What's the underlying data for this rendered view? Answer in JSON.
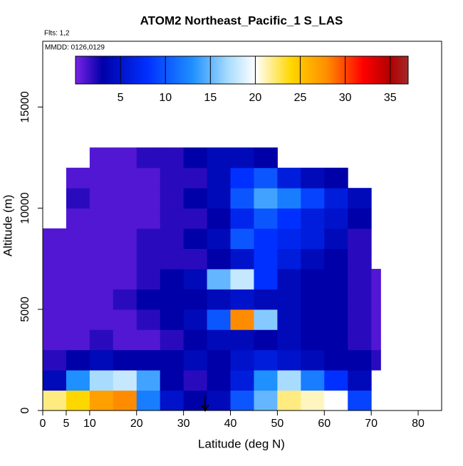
{
  "chart_data": {
    "type": "heatmap",
    "title": "ATOM2 Northeast_Pacific_1 S_LAS",
    "subtitle": "Flts: 1,2",
    "annotation": "MMDD: 0126,0129",
    "x_label": "Latitude (deg N)",
    "y_label": "Altitude (m)",
    "x_edges": [
      0,
      5,
      10,
      15,
      20,
      25,
      30,
      35,
      40,
      45,
      50,
      55,
      60,
      65,
      70,
      72
    ],
    "y_edges": [
      0,
      1000,
      2000,
      3000,
      4000,
      5000,
      6000,
      7000,
      8000,
      9000,
      10000,
      11000,
      12000,
      13000
    ],
    "z": [
      [
        22,
        24,
        27,
        28,
        12,
        5,
        3,
        4,
        10,
        15,
        22,
        21,
        20,
        9,
        null
      ],
      [
        4,
        13,
        17,
        18,
        14,
        3,
        2,
        3,
        6,
        13,
        17,
        12,
        8,
        4,
        null
      ],
      [
        2,
        3,
        4,
        3,
        3,
        3,
        4,
        3,
        5,
        6,
        5,
        4,
        3,
        3,
        2
      ],
      [
        1,
        1,
        2,
        1,
        1,
        2,
        3,
        4,
        4,
        3,
        4,
        3,
        3,
        2,
        1
      ],
      [
        1,
        1,
        1,
        1,
        2,
        3,
        4,
        10,
        28,
        16,
        4,
        3,
        3,
        2,
        1
      ],
      [
        1,
        1,
        1,
        2,
        3,
        3,
        3,
        4,
        5,
        4,
        4,
        3,
        3,
        2,
        1
      ],
      [
        1,
        1,
        1,
        1,
        2,
        3,
        4,
        15,
        18,
        8,
        4,
        3,
        3,
        2,
        1
      ],
      [
        1,
        1,
        1,
        1,
        2,
        2,
        2,
        3,
        5,
        8,
        6,
        4,
        3,
        2,
        null
      ],
      [
        1,
        1,
        1,
        1,
        2,
        2,
        3,
        4,
        10,
        8,
        7,
        6,
        4,
        2,
        null
      ],
      [
        null,
        1,
        1,
        1,
        1,
        2,
        2,
        3,
        7,
        10,
        8,
        6,
        5,
        3,
        null
      ],
      [
        null,
        2,
        1,
        1,
        1,
        2,
        3,
        4,
        10,
        14,
        12,
        9,
        6,
        4,
        null
      ],
      [
        null,
        1,
        1,
        1,
        1,
        2,
        2,
        4,
        8,
        10,
        6,
        4,
        3,
        null,
        null
      ],
      [
        null,
        null,
        1,
        1,
        2,
        2,
        3,
        4,
        4,
        3,
        null,
        null,
        null,
        null,
        null
      ]
    ],
    "xlim": [
      0,
      85
    ],
    "xticks": [
      0,
      5,
      10,
      20,
      30,
      40,
      50,
      60,
      70,
      80
    ],
    "ylim": [
      0,
      18250
    ],
    "yticks": [
      0,
      5000,
      10000,
      15000
    ],
    "clim": [
      0,
      37
    ],
    "cticks": [
      5,
      10,
      15,
      20,
      25,
      30,
      35
    ],
    "colorscale": [
      [
        0,
        "#7a22e8"
      ],
      [
        3,
        "#0000a8"
      ],
      [
        8,
        "#0030ff"
      ],
      [
        13,
        "#1e90ff"
      ],
      [
        17,
        "#a8dcff"
      ],
      [
        20,
        "#ffffff"
      ],
      [
        24,
        "#ffd700"
      ],
      [
        28,
        "#ff8c00"
      ],
      [
        32,
        "#ff0000"
      ],
      [
        35,
        "#b00000"
      ],
      [
        37,
        "#a52a2a"
      ]
    ]
  }
}
